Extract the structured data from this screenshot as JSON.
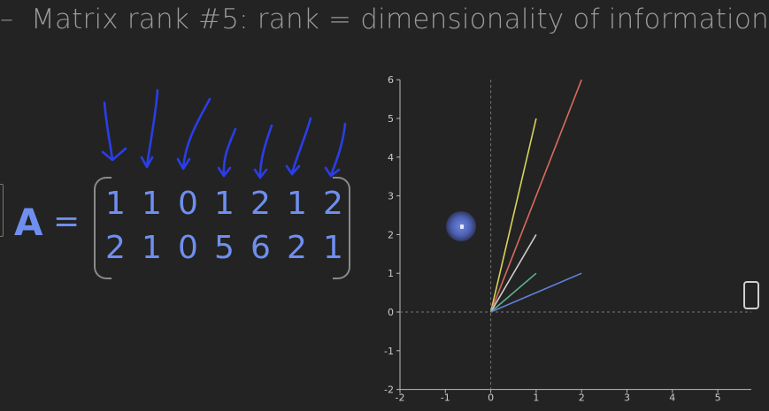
{
  "slide": {
    "title_dash": "–",
    "title": "Matrix rank #5: rank = dimensionality of information"
  },
  "matrix": {
    "label": "A",
    "equals": "=",
    "rows": [
      [
        "1",
        "1",
        "0",
        "1",
        "2",
        "1",
        "2"
      ],
      [
        "2",
        "1",
        "0",
        "5",
        "6",
        "2",
        "1"
      ]
    ]
  },
  "chart_data": {
    "type": "line",
    "title": "",
    "xlabel": "",
    "ylabel": "",
    "xlim": [
      -2,
      6
    ],
    "ylim": [
      -2,
      6
    ],
    "x_ticks": [
      "-2",
      "-1",
      "0",
      "1",
      "2",
      "3",
      "4",
      "5"
    ],
    "y_ticks": [
      "-2",
      "-1",
      "0",
      "1",
      "2",
      "3",
      "4",
      "5",
      "6"
    ],
    "grid": false,
    "axes_lines": "dashed at x=0 and y=0",
    "series": [
      {
        "x": [
          0,
          1
        ],
        "y": [
          0,
          5
        ],
        "color": "#d8d45a"
      },
      {
        "x": [
          0,
          2
        ],
        "y": [
          0,
          6
        ],
        "color": "#d96a5e"
      },
      {
        "x": [
          0,
          1
        ],
        "y": [
          0,
          2
        ],
        "color": "#cfcfcf"
      },
      {
        "x": [
          0,
          1
        ],
        "y": [
          0,
          1
        ],
        "color": "#5fb38a"
      },
      {
        "x": [
          0,
          2
        ],
        "y": [
          0,
          1
        ],
        "color": "#5e82d8"
      }
    ]
  },
  "colors": {
    "background": "#232323",
    "accent": "#6f8ff0",
    "ink_annotation": "#2a3ee8"
  }
}
